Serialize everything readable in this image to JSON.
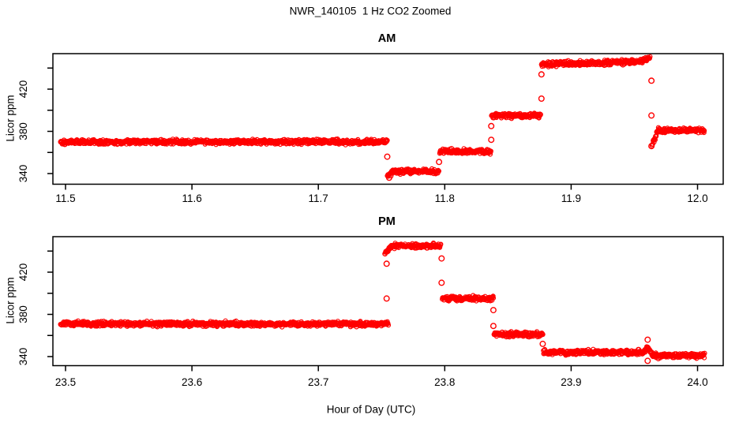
{
  "page": {
    "title": "NWR_140105  1 Hz CO2 Zoomed",
    "xlabel": "Hour of Day (UTC)",
    "ylabel": "Licor ppm",
    "text_color": "#000000",
    "background_color": "#ffffff",
    "point_color": "#ff0000"
  },
  "chart_data": [
    {
      "type": "scatter",
      "title": "AM",
      "ylabel": "Licor ppm",
      "marker": "open-circle",
      "color": "#ff0000",
      "xlim": [
        11.49,
        12.01
      ],
      "ylim": [
        330,
        454
      ],
      "xticks": [
        11.5,
        11.6,
        11.7,
        11.8,
        11.9,
        12.0
      ],
      "xtick_labels": [
        "11.5",
        "11.6",
        "11.7",
        "11.8",
        "11.9",
        "12.0"
      ],
      "yticks": [
        340,
        360,
        380,
        400,
        420,
        440
      ],
      "ytick_labels": [
        "340",
        "",
        "380",
        "",
        "420",
        ""
      ],
      "sample_rate_hz": 1,
      "noise_ppm": 1.1,
      "segments": [
        {
          "t_start": 11.496,
          "t_end": 11.7545,
          "level": 370
        },
        {
          "t_start": 11.7545,
          "t_end": 11.759,
          "level": 337,
          "level_end": 342
        },
        {
          "t_start": 11.759,
          "t_end": 11.7955,
          "level": 342
        },
        {
          "t_start": 11.796,
          "t_end": 11.8365,
          "level": 361
        },
        {
          "t_start": 11.837,
          "t_end": 11.876,
          "level": 395
        },
        {
          "t_start": 11.8765,
          "t_end": 11.9555,
          "level": 443.5,
          "level_end": 446
        },
        {
          "t_start": 11.9555,
          "t_end": 11.9625,
          "level": 446,
          "level_end": 450
        },
        {
          "t_start": 11.964,
          "t_end": 11.969,
          "level": 367,
          "level_end": 381
        },
        {
          "t_start": 11.969,
          "t_end": 12.0055,
          "level": 381
        }
      ],
      "transition_points": [
        {
          "t": 11.7545,
          "values": [
            356
          ]
        },
        {
          "t": 11.756,
          "values": [
            336
          ]
        },
        {
          "t": 11.7955,
          "values": [
            351
          ]
        },
        {
          "t": 11.8368,
          "values": [
            385,
            372
          ]
        },
        {
          "t": 11.8765,
          "values": [
            434,
            411
          ]
        },
        {
          "t": 11.9635,
          "values": [
            428,
            395,
            366
          ]
        }
      ]
    },
    {
      "type": "scatter",
      "title": "PM",
      "ylabel": "Licor ppm",
      "marker": "open-circle",
      "color": "#ff0000",
      "xlim": [
        23.49,
        24.01
      ],
      "ylim": [
        330,
        454
      ],
      "xticks": [
        23.5,
        23.6,
        23.7,
        23.8,
        23.9,
        24.0
      ],
      "xtick_labels": [
        "23.5",
        "23.6",
        "23.7",
        "23.8",
        "23.9",
        "24.0"
      ],
      "yticks": [
        340,
        360,
        380,
        400,
        420,
        440
      ],
      "ytick_labels": [
        "340",
        "",
        "380",
        "",
        "420",
        ""
      ],
      "sample_rate_hz": 1,
      "noise_ppm": 1.1,
      "segments": [
        {
          "t_start": 23.496,
          "t_end": 23.7555,
          "level": 371
        },
        {
          "t_start": 23.7525,
          "t_end": 23.758,
          "level": 438,
          "level_end": 445
        },
        {
          "t_start": 23.758,
          "t_end": 23.797,
          "level": 445
        },
        {
          "t_start": 23.798,
          "t_end": 23.8385,
          "level": 395
        },
        {
          "t_start": 23.839,
          "t_end": 23.8775,
          "level": 361
        },
        {
          "t_start": 23.878,
          "t_end": 23.957,
          "level": 344
        },
        {
          "t_start": 23.957,
          "t_end": 23.9605,
          "level": 344,
          "level_end": 349
        },
        {
          "t_start": 23.9605,
          "t_end": 23.9645,
          "level": 349,
          "level_end": 341
        },
        {
          "t_start": 23.9645,
          "t_end": 24.0055,
          "level": 341
        }
      ],
      "transition_points": [
        {
          "t": 23.754,
          "values": [
            395,
            428
          ]
        },
        {
          "t": 23.7975,
          "values": [
            433,
            410
          ]
        },
        {
          "t": 23.8385,
          "values": [
            384,
            369
          ]
        },
        {
          "t": 23.8775,
          "values": [
            352
          ]
        },
        {
          "t": 23.9605,
          "values": [
            356,
            336
          ]
        }
      ]
    }
  ]
}
